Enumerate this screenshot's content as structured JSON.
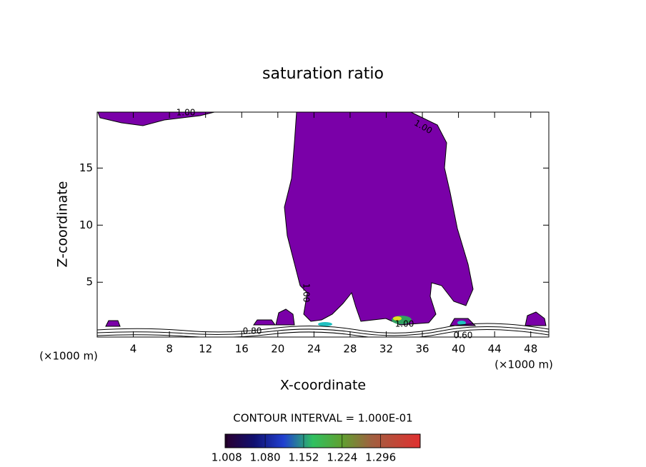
{
  "chart_data": {
    "type": "contour",
    "title": "saturation ratio",
    "xlabel": "X-coordinate",
    "ylabel": "Z-coordinate",
    "x_unit_left": "(×1000 m)",
    "x_unit_right": "(×1000 m)",
    "xlim": [
      0,
      50
    ],
    "xticks": [
      4,
      8,
      12,
      16,
      20,
      24,
      28,
      32,
      36,
      40,
      44,
      48
    ],
    "ylim": [
      0.2,
      19.9
    ],
    "yticks": [
      5,
      10,
      15
    ],
    "color": "#7a00a8",
    "contour_labels": [
      "1.00",
      "1.00",
      "1.00",
      "0.80",
      "1.00",
      "0.60"
    ],
    "contour_interval": "CONTOUR INTERVAL = 1.000E-01",
    "clim": [
      1.005,
      1.37
    ],
    "colorbar_ticks": [
      {
        "value": 1.008,
        "label": "1.008"
      },
      {
        "value": 1.08,
        "label": "1.080"
      },
      {
        "value": 1.152,
        "label": "1.152"
      },
      {
        "value": 1.224,
        "label": "1.224"
      },
      {
        "value": 1.296,
        "label": "1.296"
      }
    ]
  }
}
